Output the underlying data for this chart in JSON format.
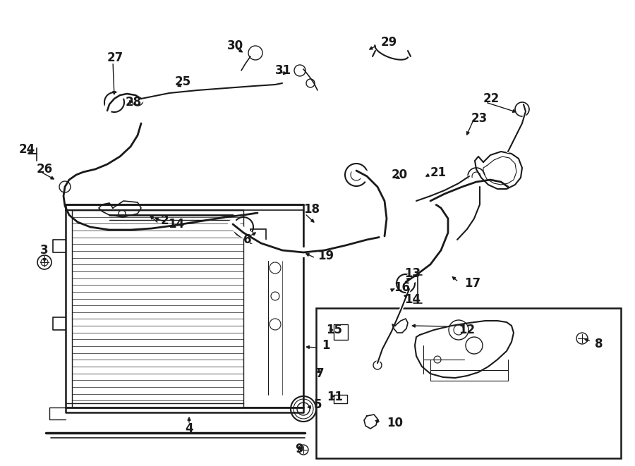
{
  "bg_color": "#ffffff",
  "line_color": "#1a1a1a",
  "fig_width": 9.0,
  "fig_height": 6.61,
  "dpi": 100,
  "font_size": 12,
  "font_size_small": 10
}
